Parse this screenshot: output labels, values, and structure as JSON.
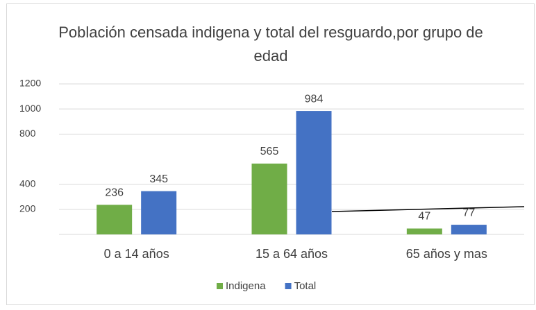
{
  "chart_data": {
    "type": "bar",
    "title": "Población censada indigena y total del resguardo,por grupo de edad",
    "categories": [
      "0 a 14 años",
      "15 a 64 años",
      "65 años y mas"
    ],
    "series": [
      {
        "name": "Indigena",
        "color": "#70ad47",
        "values": [
          236,
          565,
          47
        ]
      },
      {
        "name": "Total",
        "color": "#4472c4",
        "values": [
          345,
          984,
          77
        ]
      }
    ],
    "ylim": [
      0,
      1200
    ],
    "yticks": [
      200,
      400,
      800,
      1000,
      1200
    ],
    "grid": true,
    "legend": "bottom"
  }
}
